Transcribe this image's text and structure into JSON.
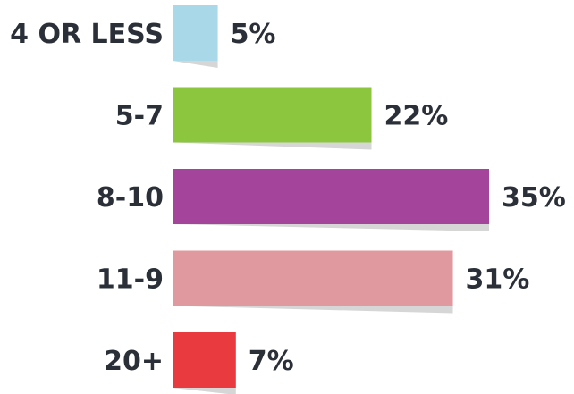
{
  "chart_data": {
    "type": "bar",
    "orientation": "horizontal",
    "categories": [
      "4 OR LESS",
      "5-7",
      "8-10",
      "11-9",
      "20+"
    ],
    "values": [
      5,
      22,
      35,
      31,
      7
    ],
    "value_labels": [
      "5%",
      "22%",
      "35%",
      "31%",
      "7%"
    ],
    "unit": "%",
    "colors": [
      "#a9d8e8",
      "#8cc63f",
      "#a4449a",
      "#e0999f",
      "#e83a3f"
    ],
    "shadow_color": "#d6d6d6",
    "xlim": [
      0,
      35
    ],
    "grid": false,
    "legend": "none"
  }
}
